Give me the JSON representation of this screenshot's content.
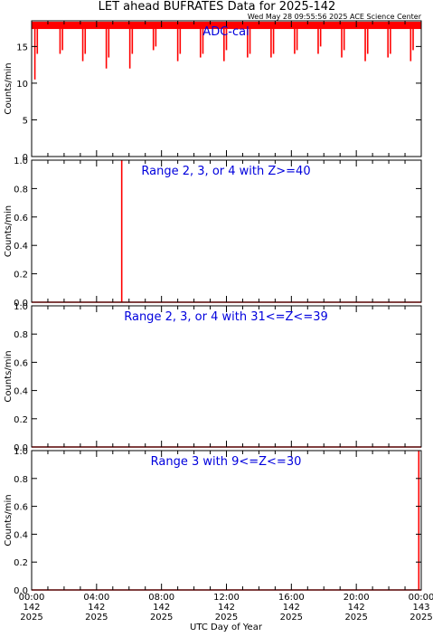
{
  "title": "LET ahead BUFRATES Data for 2025-142",
  "timestamp": "Wed May 28 09:55:56 2025 ACE Science Center",
  "xlabel": "UTC Day of Year",
  "x_ticks": [
    {
      "time": "00:00",
      "doy": "142",
      "year": "2025"
    },
    {
      "time": "04:00",
      "doy": "142",
      "year": "2025"
    },
    {
      "time": "08:00",
      "doy": "142",
      "year": "2025"
    },
    {
      "time": "12:00",
      "doy": "142",
      "year": "2025"
    },
    {
      "time": "16:00",
      "doy": "142",
      "year": "2025"
    },
    {
      "time": "20:00",
      "doy": "142",
      "year": "2025"
    },
    {
      "time": "00:00",
      "doy": "143",
      "year": "2025"
    }
  ],
  "colors": {
    "data": "#ff0000",
    "label": "#0000dd",
    "axis": "#000000"
  },
  "chart_data": [
    {
      "type": "line",
      "panel_label": "ADC-cal",
      "ylabel": "Counts/min",
      "ylim": [
        0,
        18.5
      ],
      "yticks": [
        0,
        5,
        10,
        15
      ],
      "yticklabels": [
        "0",
        "5",
        "10",
        "15"
      ],
      "xlim_hours": [
        0,
        24
      ],
      "baseline": 18,
      "x_hours": [
        0.2,
        0.35,
        1.75,
        1.9,
        3.15,
        3.3,
        4.6,
        4.75,
        6.05,
        6.2,
        7.5,
        7.65,
        9.0,
        9.15,
        10.4,
        10.55,
        11.85,
        12.0,
        13.3,
        13.45,
        14.75,
        14.9,
        16.2,
        16.35,
        17.65,
        17.8,
        19.1,
        19.25,
        20.55,
        20.7,
        21.95,
        22.1,
        23.35,
        23.5
      ],
      "y_values": [
        10.5,
        14,
        14,
        14.5,
        13,
        14,
        12,
        13.5,
        12,
        14,
        14.5,
        15,
        13,
        14,
        13.5,
        14,
        13,
        14.5,
        13.5,
        14,
        13.5,
        14,
        14,
        14.5,
        14,
        15,
        13.5,
        14.5,
        13,
        14,
        13.5,
        14,
        13,
        14.5
      ]
    },
    {
      "type": "line",
      "panel_label": "Range 2, 3, or 4 with Z>=40",
      "ylabel": "Counts/min",
      "ylim": [
        0,
        1.0
      ],
      "yticks": [
        0,
        0.2,
        0.4,
        0.6,
        0.8,
        1.0
      ],
      "yticklabels": [
        "0.0",
        "0.2",
        "0.4",
        "0.6",
        "0.8",
        "1.0"
      ],
      "xlim_hours": [
        0,
        24
      ],
      "baseline": 0,
      "x_hours": [
        5.55
      ],
      "y_values": [
        1.0
      ]
    },
    {
      "type": "line",
      "panel_label": "Range 2, 3, or 4 with 31<=Z<=39",
      "ylabel": "Counts/min",
      "ylim": [
        0,
        1.0
      ],
      "yticks": [
        0,
        0.2,
        0.4,
        0.6,
        0.8,
        1.0
      ],
      "yticklabels": [
        "0.0",
        "0.2",
        "0.4",
        "0.6",
        "0.8",
        "1.0"
      ],
      "xlim_hours": [
        0,
        24
      ],
      "baseline": 0,
      "x_hours": [],
      "y_values": []
    },
    {
      "type": "line",
      "panel_label": "Range 3 with 9<=Z<=30",
      "ylabel": "Counts/min",
      "ylim": [
        0,
        1.0
      ],
      "yticks": [
        0,
        0.2,
        0.4,
        0.6,
        0.8,
        1.0
      ],
      "yticklabels": [
        "0.0",
        "0.2",
        "0.4",
        "0.6",
        "0.8",
        "1.0"
      ],
      "xlim_hours": [
        0,
        24
      ],
      "baseline": 0,
      "x_hours": [
        23.85
      ],
      "y_values": [
        1.0
      ]
    }
  ]
}
